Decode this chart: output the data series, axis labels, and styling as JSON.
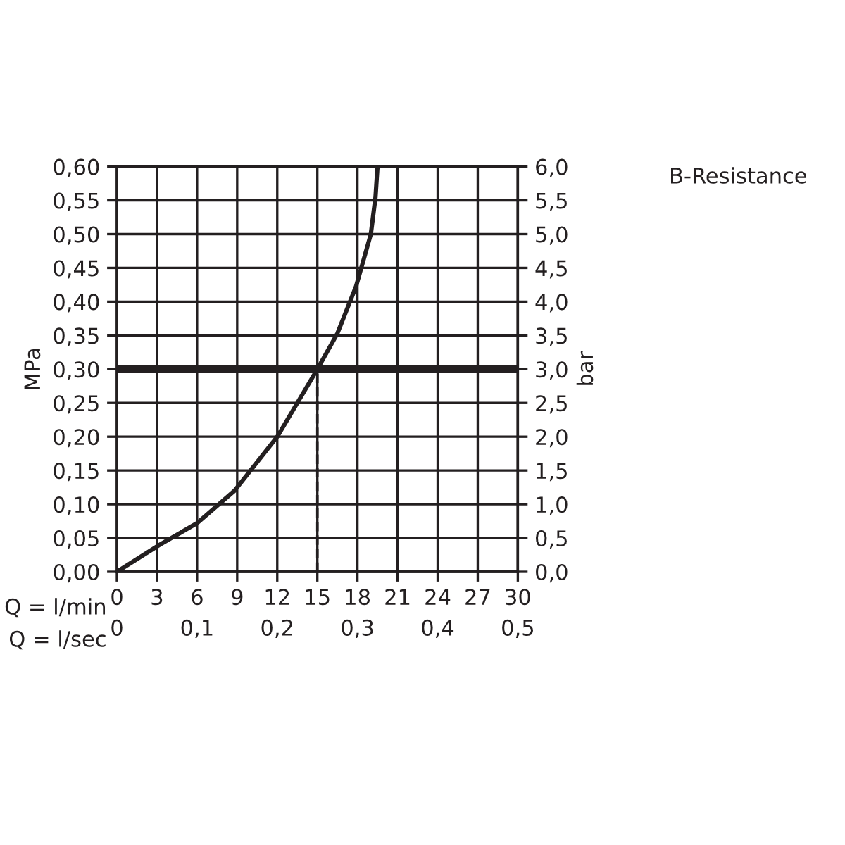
{
  "chart_data": {
    "type": "line",
    "title": "B-Resistance",
    "xlabel": "Q = l/min",
    "x2label": "Q = l/sec",
    "ylabel": "MPa",
    "y2label": "bar",
    "x": [
      0,
      3.2,
      6,
      8.8,
      12,
      15,
      16.5,
      17.9,
      19,
      19.35,
      19.5
    ],
    "series": [
      {
        "color": "#231f20",
        "values": [
          0,
          0.04,
          0.072,
          0.12,
          0.2,
          0.3,
          0.353,
          0.423,
          0.5,
          0.555,
          0.6
        ]
      }
    ],
    "xlim": [
      0,
      30
    ],
    "xticks": [
      0,
      3,
      6,
      9,
      12,
      15,
      18,
      21,
      24,
      27,
      30
    ],
    "x2lim": [
      0,
      0.5
    ],
    "x2ticks": [
      0,
      {
        "value": 0.1,
        "label": "0,1"
      },
      {
        "value": 0.2,
        "label": "0,2"
      },
      {
        "value": 0.3,
        "label": "0,3"
      },
      {
        "value": 0.4,
        "label": "0,4"
      },
      {
        "value": 0.5,
        "label": "0,5"
      }
    ],
    "ylim": [
      0,
      0.6
    ],
    "yticks": [
      {
        "value": 0,
        "label": "0,00"
      },
      {
        "value": 0.05,
        "label": "0,05"
      },
      {
        "value": 0.1,
        "label": "0,10"
      },
      {
        "value": 0.15,
        "label": "0,15"
      },
      {
        "value": 0.2,
        "label": "0,20"
      },
      {
        "value": 0.25,
        "label": "0,25"
      },
      {
        "value": 0.3,
        "label": "0,30"
      },
      {
        "value": 0.35,
        "label": "0,35"
      },
      {
        "value": 0.4,
        "label": "0,40"
      },
      {
        "value": 0.45,
        "label": "0,45"
      },
      {
        "value": 0.5,
        "label": "0,50"
      },
      {
        "value": 0.55,
        "label": "0,55"
      },
      {
        "value": 0.6,
        "label": "0,60"
      }
    ],
    "y2lim": [
      0,
      6
    ],
    "y2ticks": [
      {
        "value": 0,
        "label": "0,0"
      },
      {
        "value": 0.5,
        "label": "0,5"
      },
      {
        "value": 1,
        "label": "1,0"
      },
      {
        "value": 1.5,
        "label": "1,5"
      },
      {
        "value": 2,
        "label": "2,0"
      },
      {
        "value": 2.5,
        "label": "2,5"
      },
      {
        "value": 3,
        "label": "3,0"
      },
      {
        "value": 3.5,
        "label": "3,5"
      },
      {
        "value": 4,
        "label": "4,0"
      },
      {
        "value": 4.5,
        "label": "4,5"
      },
      {
        "value": 5,
        "label": "5,0"
      },
      {
        "value": 5.5,
        "label": "5,5"
      },
      {
        "value": 6,
        "label": "6,0"
      }
    ],
    "ref_lines": [
      {
        "axis": "y",
        "value": 0.3,
        "color": "#231f20",
        "line_style": "solid"
      },
      {
        "axis": "x",
        "value": 15,
        "color": "#231f20",
        "line_style": "dashed"
      }
    ],
    "grid": true,
    "marker": "none",
    "line_style": "solid"
  }
}
